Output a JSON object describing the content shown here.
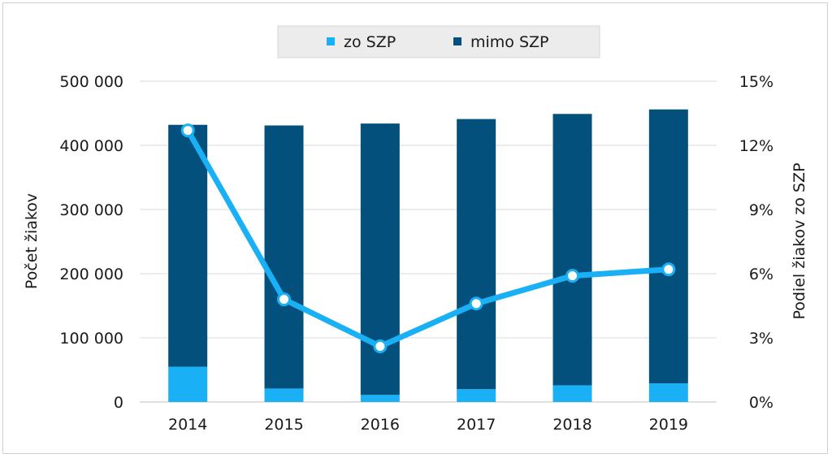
{
  "chart_data": {
    "type": "bar",
    "stacked": true,
    "categories": [
      "2014",
      "2015",
      "2016",
      "2017",
      "2018",
      "2019"
    ],
    "series": [
      {
        "name": "zo SZP",
        "values": [
          55000,
          21000,
          11000,
          20000,
          26000,
          29000
        ],
        "color": "#1ab0f5"
      },
      {
        "name": "mimo SZP",
        "values": [
          377000,
          410000,
          423000,
          421000,
          423000,
          427000
        ],
        "color": "#03507d"
      }
    ],
    "line_series": {
      "values": [
        12.7,
        4.8,
        2.6,
        4.6,
        5.9,
        6.2
      ],
      "axis": "right",
      "color": "#1ab0f5"
    },
    "ylabel": "Počet žiakov",
    "y2label": "Podiel žiakov zo SZP",
    "ylim": [
      0,
      500000
    ],
    "y2lim": [
      0,
      15
    ],
    "yticks": [
      "0",
      "100 000",
      "200 000",
      "300 000",
      "400 000",
      "500 000"
    ],
    "y2ticks": [
      "0%",
      "3%",
      "6%",
      "9%",
      "12%",
      "15%"
    ],
    "grid": true,
    "legend_position": "top-center"
  }
}
